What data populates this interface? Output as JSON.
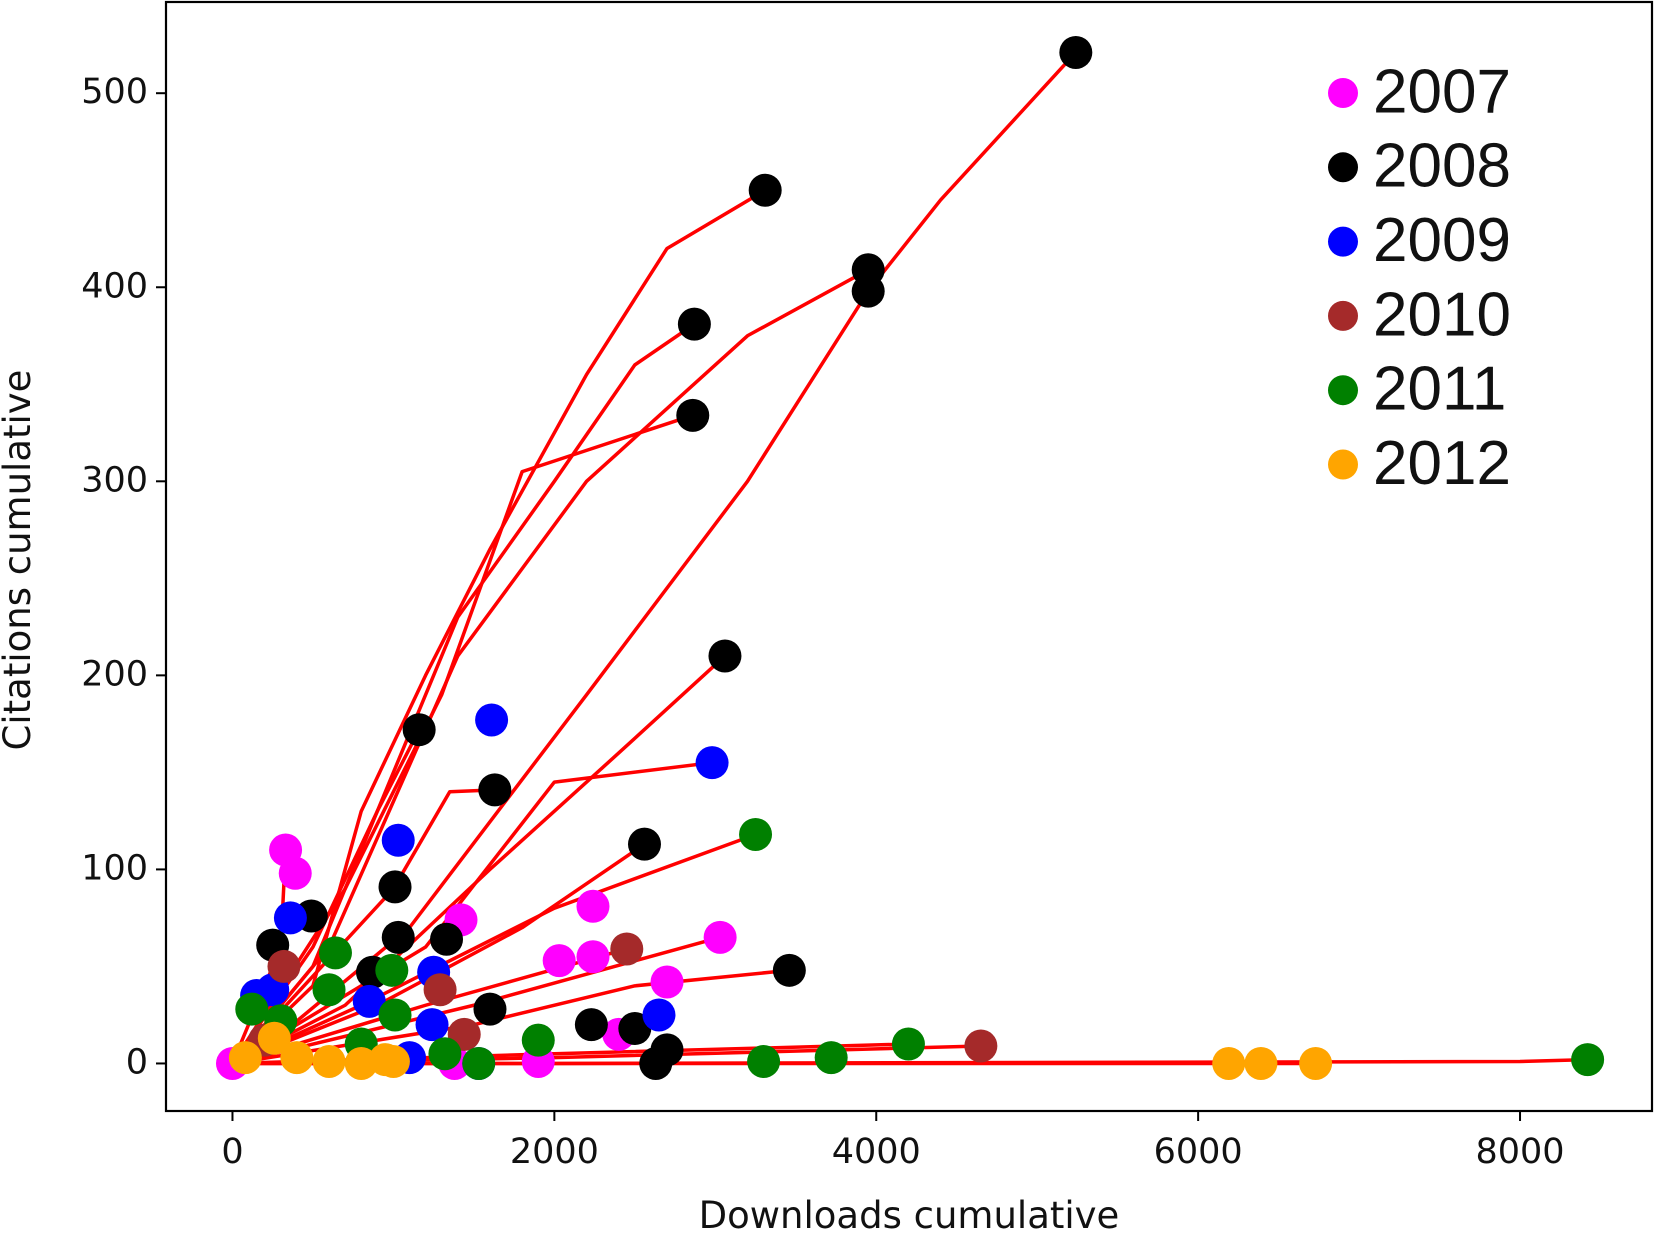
{
  "chart_data": {
    "type": "scatter",
    "xlabel": "Downloads cumulative",
    "ylabel": "Citations cumulative",
    "xlim": [
      -413,
      8820
    ],
    "ylim": [
      -24.5,
      547
    ],
    "xticks": [
      0,
      2000,
      4000,
      6000,
      8000
    ],
    "yticks": [
      0,
      100,
      200,
      300,
      400,
      500
    ],
    "legend": "upper right",
    "line_color": "#ff0000",
    "lines": [
      {
        "x": [
          0,
          300,
          1100,
          2200,
          3200,
          3950,
          4400,
          5240
        ],
        "y": [
          0,
          15,
          70,
          190,
          300,
          398,
          445,
          521
        ]
      },
      {
        "x": [
          0,
          500,
          800,
          1200,
          1600,
          2200,
          2700,
          3310
        ],
        "y": [
          0,
          40,
          130,
          200,
          265,
          355,
          420,
          450
        ]
      },
      {
        "x": [
          0,
          500,
          900,
          1400,
          2000,
          2500,
          2870
        ],
        "y": [
          0,
          50,
          130,
          230,
          300,
          360,
          381
        ]
      },
      {
        "x": [
          0,
          600,
          1400,
          2200,
          3200,
          3950
        ],
        "y": [
          0,
          60,
          210,
          300,
          375,
          409
        ]
      },
      {
        "x": [
          0,
          700,
          1300,
          1800,
          2860
        ],
        "y": [
          0,
          90,
          190,
          305,
          334
        ]
      },
      {
        "x": [
          0,
          700,
          1600,
          2400,
          3060
        ],
        "y": [
          0,
          30,
          100,
          160,
          210
        ]
      },
      {
        "x": [
          0,
          500,
          900,
          1160
        ],
        "y": [
          0,
          60,
          130,
          172
        ]
      },
      {
        "x": [
          0,
          1000,
          1350,
          1630
        ],
        "y": [
          0,
          90,
          140,
          141
        ]
      },
      {
        "x": [
          0,
          1200,
          2000,
          2980
        ],
        "y": [
          0,
          60,
          145,
          155
        ]
      },
      {
        "x": [
          0,
          800,
          2000,
          3250
        ],
        "y": [
          0,
          30,
          80,
          118
        ]
      },
      {
        "x": [
          0,
          900,
          1800,
          2560
        ],
        "y": [
          0,
          30,
          70,
          113
        ]
      },
      {
        "x": [
          0,
          1500,
          2500,
          3460
        ],
        "y": [
          0,
          20,
          40,
          48
        ]
      },
      {
        "x": [
          0,
          2000,
          8000,
          8420
        ],
        "y": [
          0,
          0,
          1,
          2
        ]
      },
      {
        "x": [
          0,
          2000,
          4650
        ],
        "y": [
          0,
          3,
          9
        ]
      },
      {
        "x": [
          0,
          3000,
          6730
        ],
        "y": [
          0,
          0,
          0
        ]
      },
      {
        "x": [
          0,
          1500,
          3030
        ],
        "y": [
          0,
          30,
          65
        ]
      },
      {
        "x": [
          0,
          1200,
          2450
        ],
        "y": [
          0,
          30,
          59
        ]
      },
      {
        "x": [
          0,
          2000,
          4200
        ],
        "y": [
          0,
          5,
          10
        ]
      },
      {
        "x": [
          0,
          300,
          330
        ],
        "y": [
          0,
          60,
          110
        ]
      }
    ],
    "series": [
      {
        "name": "2007",
        "color": "#ff00ff",
        "x": [
          330,
          390,
          1420,
          2240,
          2240,
          2030,
          3030,
          2700,
          2400,
          1900,
          0,
          1380
        ],
        "y": [
          110,
          98,
          74,
          81,
          55,
          53,
          65,
          42,
          15,
          1,
          0,
          0
        ]
      },
      {
        "name": "2008",
        "color": "#000000",
        "x": [
          5240,
          3310,
          3950,
          3950,
          2870,
          2860,
          3060,
          1160,
          1630,
          2560,
          1010,
          1030,
          3460,
          1600,
          2230,
          2500,
          2700,
          2630,
          250,
          490,
          1330,
          870
        ],
        "y": [
          521,
          450,
          409,
          398,
          381,
          334,
          210,
          172,
          141,
          113,
          91,
          65,
          48,
          28,
          20,
          18,
          7,
          0,
          61,
          76,
          64,
          47
        ]
      },
      {
        "name": "2009",
        "color": "#0000ff",
        "x": [
          1610,
          2980,
          1030,
          360,
          2650,
          1250,
          1530,
          150,
          250,
          850,
          1240,
          1100
        ],
        "y": [
          177,
          155,
          115,
          75,
          25,
          47,
          0,
          35,
          38,
          32,
          20,
          3
        ]
      },
      {
        "name": "2010",
        "color": "#a52a2a",
        "x": [
          2450,
          4650,
          320,
          1290,
          1440,
          200
        ],
        "y": [
          59,
          9,
          50,
          38,
          15,
          12
        ]
      },
      {
        "name": "2011",
        "color": "#008000",
        "x": [
          8420,
          4200,
          3720,
          3300,
          3250,
          1900,
          1530,
          640,
          990,
          1010,
          120,
          300,
          600,
          800,
          1320
        ],
        "y": [
          2,
          10,
          3,
          1,
          118,
          12,
          0,
          57,
          48,
          25,
          28,
          22,
          38,
          10,
          5
        ]
      },
      {
        "name": "2012",
        "color": "#ffa500",
        "x": [
          6730,
          6390,
          6190,
          260,
          80,
          400,
          600,
          800,
          1000,
          950
        ],
        "y": [
          0,
          0,
          0,
          13,
          3,
          3,
          1,
          0,
          1,
          2
        ]
      }
    ]
  }
}
